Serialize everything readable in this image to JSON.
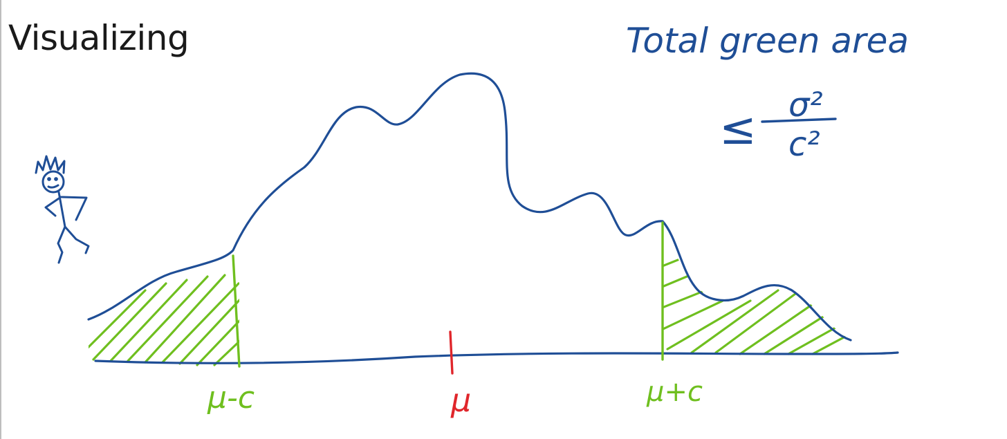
{
  "slide": {
    "title": "Visualizing"
  },
  "annotation": {
    "line1": "Total green area",
    "inequality": "≤",
    "numerator": "σ²",
    "denominator": "c²"
  },
  "axis_labels": {
    "left": "μ-c",
    "center": "μ",
    "right": "μ+c"
  },
  "colors": {
    "ink_blue": "#1f4e96",
    "hatch_green": "#6fbf1f",
    "mean_red": "#e0262b",
    "title_black": "#1a1a1a"
  },
  "icons": {
    "figure": "stick-figure-icon"
  }
}
